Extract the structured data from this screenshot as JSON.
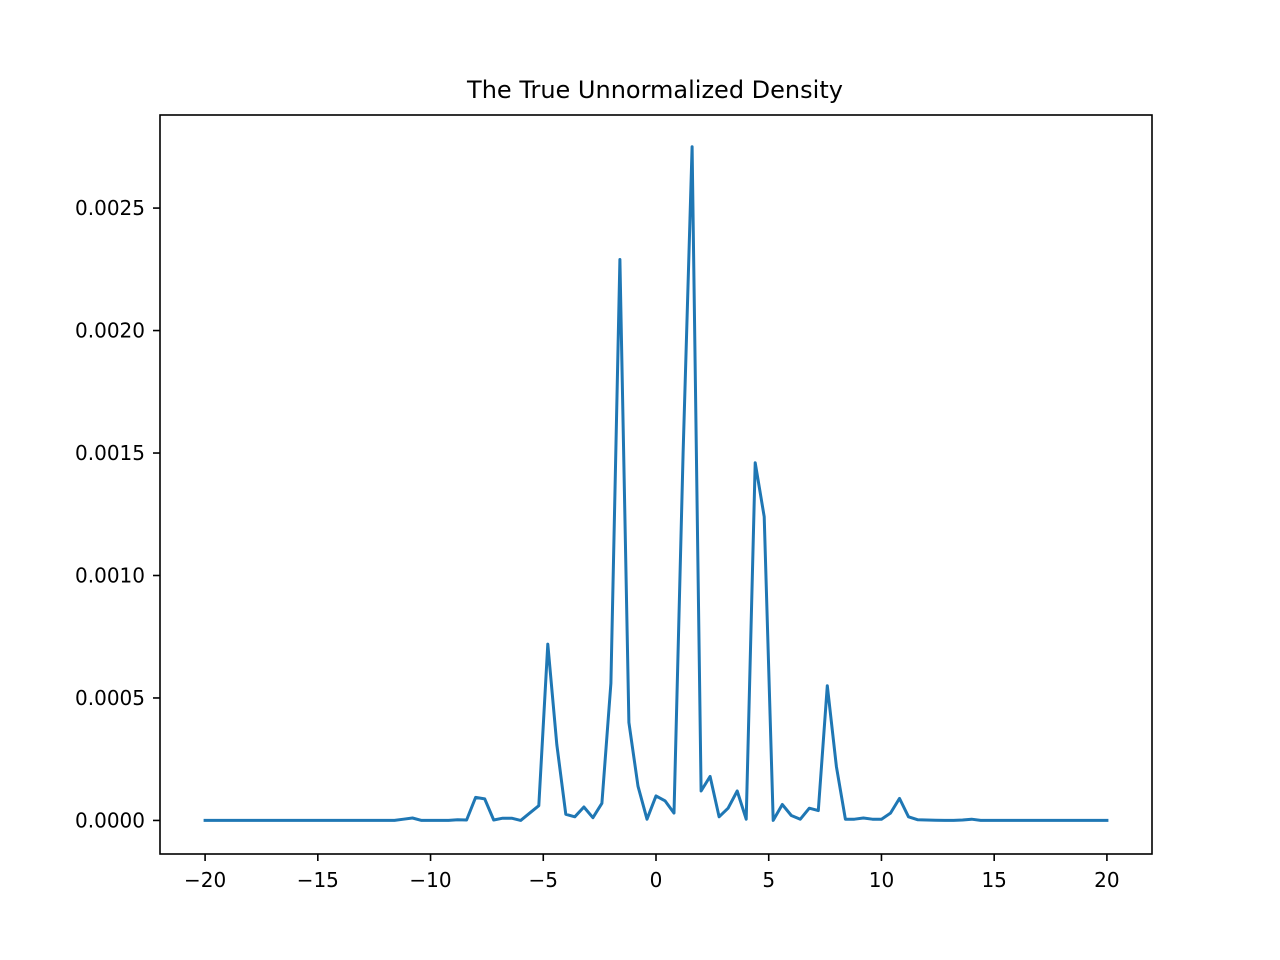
{
  "chart_data": {
    "type": "line",
    "title": "The True Unnormalized Density",
    "xlabel": "",
    "ylabel": "",
    "xlim": [
      -22,
      22
    ],
    "ylim": [
      -0.000137,
      0.00288
    ],
    "grid": false,
    "x_ticks": [
      -20,
      -15,
      -10,
      -5,
      0,
      5,
      10,
      15,
      20
    ],
    "x_tick_labels": [
      "−20",
      "−15",
      "−10",
      "−5",
      "0",
      "5",
      "10",
      "15",
      "20"
    ],
    "y_ticks": [
      0,
      0.0005,
      0.001,
      0.0015,
      0.002,
      0.0025
    ],
    "y_tick_labels": [
      "0.0000",
      "0.0005",
      "0.0010",
      "0.0015",
      "0.0020",
      "0.0025"
    ],
    "line_color": "#1f77b4",
    "series": [
      {
        "x": [
          -20,
          -19.6,
          -19.2,
          -18.8,
          -18.4,
          -18,
          -17.6,
          -17.2,
          -16.8,
          -16.4,
          -16,
          -15.6,
          -15.2,
          -14.8,
          -14.4,
          -14,
          -13.6,
          -13.2,
          -12.8,
          -12.4,
          -12,
          -11.6,
          -11.2,
          -10.8,
          -10.4,
          -10,
          -9.6,
          -9.2,
          -8.8,
          -8.4,
          -8,
          -7.6,
          -7.2,
          -6.8,
          -6.4,
          -6,
          -5.6,
          -5.2,
          -4.8,
          -4.4,
          -4,
          -3.6,
          -3.2,
          -2.8,
          -2.4,
          -2,
          -1.6,
          -1.2,
          -0.8,
          -0.4,
          0,
          0.4,
          0.8,
          1.2,
          1.6,
          2,
          2.4,
          2.8,
          3.2,
          3.6,
          4,
          4.4,
          4.8,
          5.2,
          5.6,
          6,
          6.4,
          6.8,
          7.2,
          7.6,
          8,
          8.4,
          8.8,
          9.2,
          9.6,
          10,
          10.4,
          10.8,
          11.2,
          11.6,
          12,
          12.4,
          12.8,
          13.2,
          13.6,
          14,
          14.4,
          14.8,
          15.2,
          15.6,
          16,
          16.4,
          16.8,
          17.2,
          17.6,
          18,
          18.4,
          18.8,
          19.2,
          19.6,
          20
        ],
        "y": [
          0,
          0,
          0,
          0,
          0,
          0,
          0,
          0,
          0,
          0,
          0,
          0,
          0,
          0,
          0,
          0,
          0,
          0,
          0,
          0,
          0,
          0,
          5e-06,
          1e-05,
          0,
          0,
          0,
          0,
          3e-06,
          2e-06,
          9.4e-05,
          8.8e-05,
          2e-06,
          9e-06,
          9e-06,
          0,
          3e-05,
          6e-05,
          0.00072,
          0.00031,
          2.5e-05,
          1.5e-05,
          5.5e-05,
          1.1e-05,
          7e-05,
          0.00056,
          0.00229,
          0.0004,
          0.00014,
          5e-06,
          0.0001,
          8e-05,
          3e-05,
          0.0015,
          0.00275,
          0.00012,
          0.00018,
          1.5e-05,
          5e-05,
          0.00012,
          5e-06,
          0.00146,
          0.00124,
          0,
          6.5e-05,
          2e-05,
          5e-06,
          5e-05,
          4e-05,
          0.00055,
          0.00022,
          5e-06,
          5e-06,
          1e-05,
          5e-06,
          5e-06,
          3e-05,
          9e-05,
          1.5e-05,
          3e-06,
          2e-06,
          1e-06,
          0,
          0,
          2e-06,
          5e-06,
          0,
          0,
          0,
          0,
          0,
          0,
          0,
          0,
          0,
          0,
          0,
          0,
          0,
          0,
          0
        ]
      }
    ]
  }
}
